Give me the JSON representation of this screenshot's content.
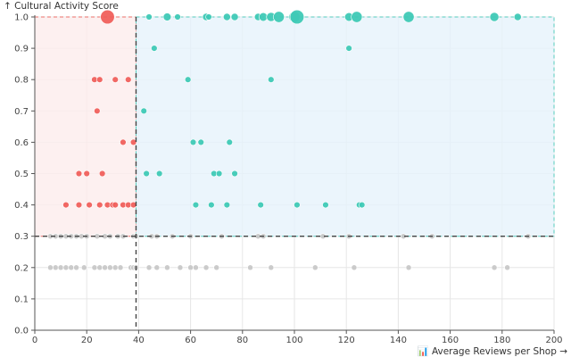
{
  "chart_data": {
    "type": "scatter",
    "xlabel": "📊 Average Reviews per Shop →",
    "ylabel": "↑ Cultural Activity Score",
    "xlim": [
      0,
      200
    ],
    "ylim": [
      0.0,
      1.0
    ],
    "x_ticks": [
      0,
      20,
      40,
      60,
      80,
      100,
      120,
      140,
      160,
      180,
      200
    ],
    "y_ticks": [
      "0.0",
      "0.1",
      "0.2",
      "0.3",
      "0.4",
      "0.5",
      "0.6",
      "0.7",
      "0.8",
      "0.9",
      "1.0"
    ],
    "grid": true,
    "thresholds": {
      "x": 39,
      "y": 0.3
    },
    "regions": [
      {
        "x": [
          0,
          39
        ],
        "y": [
          0.3,
          1.0
        ],
        "fill": "#fdecec",
        "stroke": "#ea6f6a"
      },
      {
        "x": [
          39,
          200
        ],
        "y": [
          0.3,
          1.0
        ],
        "fill": "#e6f2fb",
        "stroke": "#54cbbd"
      }
    ],
    "series": [
      {
        "color": "#f0605c",
        "points": [
          [
            28,
            1.0,
            2.3
          ],
          [
            23,
            0.8,
            1
          ],
          [
            25,
            0.8,
            1
          ],
          [
            31,
            0.8,
            1
          ],
          [
            36,
            0.8,
            1
          ],
          [
            24,
            0.7,
            1
          ],
          [
            34,
            0.6,
            1
          ],
          [
            38,
            0.6,
            1
          ],
          [
            17,
            0.5,
            1
          ],
          [
            20,
            0.5,
            1
          ],
          [
            26,
            0.5,
            1
          ],
          [
            12,
            0.4,
            1
          ],
          [
            17,
            0.4,
            1
          ],
          [
            21,
            0.4,
            1
          ],
          [
            25,
            0.4,
            1
          ],
          [
            28,
            0.4,
            1
          ],
          [
            30,
            0.4,
            1
          ],
          [
            31,
            0.4,
            1
          ],
          [
            34,
            0.4,
            1
          ],
          [
            36,
            0.4,
            1
          ],
          [
            38,
            0.4,
            1
          ]
        ]
      },
      {
        "color": "#3fc9b6",
        "points": [
          [
            44,
            1.0,
            1
          ],
          [
            51,
            1.0,
            1.3
          ],
          [
            55,
            1.0,
            1
          ],
          [
            66,
            1.0,
            1.2
          ],
          [
            67,
            1.0,
            1
          ],
          [
            74,
            1.0,
            1.2
          ],
          [
            77,
            1.0,
            1.2
          ],
          [
            86,
            1.0,
            1.2
          ],
          [
            88,
            1.0,
            1.4
          ],
          [
            91,
            1.0,
            1.5
          ],
          [
            94,
            1.0,
            1.8
          ],
          [
            100,
            1.0,
            1.8
          ],
          [
            101,
            1.0,
            2.3
          ],
          [
            121,
            1.0,
            1.4
          ],
          [
            124,
            1.0,
            1.8
          ],
          [
            144,
            1.0,
            1.8
          ],
          [
            177,
            1.0,
            1.5
          ],
          [
            186,
            1.0,
            1.2
          ],
          [
            46,
            0.9,
            1
          ],
          [
            121,
            0.9,
            1
          ],
          [
            59,
            0.8,
            1
          ],
          [
            91,
            0.8,
            1
          ],
          [
            42,
            0.7,
            1
          ],
          [
            61,
            0.6,
            1
          ],
          [
            64,
            0.6,
            1
          ],
          [
            75,
            0.6,
            1
          ],
          [
            43,
            0.5,
            1
          ],
          [
            48,
            0.5,
            1
          ],
          [
            69,
            0.5,
            1
          ],
          [
            71,
            0.5,
            1
          ],
          [
            77,
            0.5,
            1
          ],
          [
            62,
            0.4,
            1
          ],
          [
            68,
            0.4,
            1
          ],
          [
            74,
            0.4,
            1
          ],
          [
            87,
            0.4,
            1
          ],
          [
            101,
            0.4,
            1
          ],
          [
            112,
            0.4,
            1
          ],
          [
            125,
            0.4,
            1
          ],
          [
            126,
            0.4,
            1
          ]
        ]
      },
      {
        "color": "#c8c8c8",
        "points": [
          [
            6,
            0.3,
            0.9
          ],
          [
            8,
            0.3,
            0.9
          ],
          [
            10,
            0.3,
            0.9
          ],
          [
            12,
            0.3,
            0.9
          ],
          [
            14,
            0.3,
            0.9
          ],
          [
            16,
            0.3,
            0.9
          ],
          [
            18,
            0.3,
            0.9
          ],
          [
            20,
            0.3,
            0.9
          ],
          [
            24,
            0.3,
            0.9
          ],
          [
            27,
            0.3,
            0.9
          ],
          [
            29,
            0.3,
            0.9
          ],
          [
            32,
            0.3,
            0.9
          ],
          [
            34,
            0.3,
            0.9
          ],
          [
            38,
            0.3,
            0.9
          ],
          [
            39,
            0.3,
            0.9
          ],
          [
            45,
            0.3,
            0.9
          ],
          [
            47,
            0.3,
            0.9
          ],
          [
            53,
            0.3,
            0.9
          ],
          [
            60,
            0.3,
            0.9
          ],
          [
            72,
            0.3,
            0.9
          ],
          [
            86,
            0.3,
            0.9
          ],
          [
            88,
            0.3,
            0.9
          ],
          [
            111,
            0.3,
            0.9
          ],
          [
            121,
            0.3,
            0.9
          ],
          [
            142,
            0.3,
            0.9
          ],
          [
            153,
            0.3,
            0.9
          ],
          [
            190,
            0.3,
            0.9
          ],
          [
            6,
            0.2,
            0.9
          ],
          [
            8,
            0.2,
            0.9
          ],
          [
            10,
            0.2,
            0.9
          ],
          [
            12,
            0.2,
            0.9
          ],
          [
            14,
            0.2,
            0.9
          ],
          [
            16,
            0.2,
            0.9
          ],
          [
            19,
            0.2,
            0.9
          ],
          [
            23,
            0.2,
            0.9
          ],
          [
            25,
            0.2,
            0.9
          ],
          [
            27,
            0.2,
            0.9
          ],
          [
            29,
            0.2,
            0.9
          ],
          [
            31,
            0.2,
            0.9
          ],
          [
            33,
            0.2,
            0.9
          ],
          [
            37,
            0.2,
            0.9
          ],
          [
            38,
            0.2,
            0.9
          ],
          [
            39,
            0.2,
            0.9
          ],
          [
            44,
            0.2,
            0.9
          ],
          [
            47,
            0.2,
            0.9
          ],
          [
            51,
            0.2,
            0.9
          ],
          [
            56,
            0.2,
            0.9
          ],
          [
            60,
            0.2,
            0.9
          ],
          [
            62,
            0.2,
            0.9
          ],
          [
            66,
            0.2,
            0.9
          ],
          [
            70,
            0.2,
            0.9
          ],
          [
            83,
            0.2,
            0.9
          ],
          [
            91,
            0.2,
            0.9
          ],
          [
            108,
            0.2,
            0.9
          ],
          [
            123,
            0.2,
            0.9
          ],
          [
            144,
            0.2,
            0.9
          ],
          [
            177,
            0.2,
            0.9
          ],
          [
            182,
            0.2,
            0.9
          ]
        ]
      }
    ]
  }
}
